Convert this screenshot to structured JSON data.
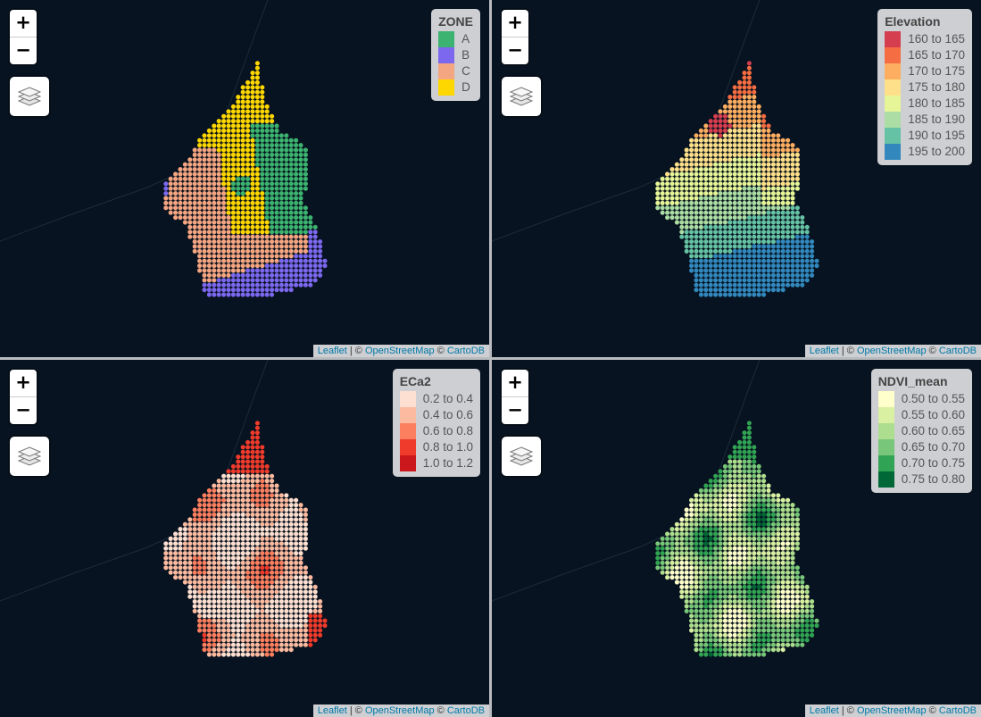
{
  "map_controls": {
    "zoom_in": "+",
    "zoom_out": "−"
  },
  "attribution": {
    "leaflet": "Leaflet",
    "sep": " | © ",
    "osm": "OpenStreetMap",
    "copy2": " © ",
    "carto": "CartoDB"
  },
  "panels": [
    {
      "legend_title": "ZONE",
      "legend": [
        {
          "label": "A",
          "color": "#3cb371"
        },
        {
          "label": "B",
          "color": "#7b68ee"
        },
        {
          "label": "C",
          "color": "#f4a582"
        },
        {
          "label": "D",
          "color": "#ffd700"
        }
      ]
    },
    {
      "legend_title": "Elevation",
      "legend": [
        {
          "label": "160 to 165",
          "color": "#d53e4f"
        },
        {
          "label": "165 to 170",
          "color": "#f46d43"
        },
        {
          "label": "170 to 175",
          "color": "#fdae61"
        },
        {
          "label": "175 to 180",
          "color": "#fee08b"
        },
        {
          "label": "180 to 185",
          "color": "#e6f598"
        },
        {
          "label": "185 to 190",
          "color": "#abdda4"
        },
        {
          "label": "190 to 195",
          "color": "#66c2a5"
        },
        {
          "label": "195 to 200",
          "color": "#3288bd"
        }
      ]
    },
    {
      "legend_title": "ECa2",
      "legend": [
        {
          "label": "0.2 to 0.4",
          "color": "#fee0d2"
        },
        {
          "label": "0.4 to 0.6",
          "color": "#fcbba1"
        },
        {
          "label": "0.6 to 0.8",
          "color": "#fc7f5f"
        },
        {
          "label": "0.8 to 1.0",
          "color": "#ef3b2c"
        },
        {
          "label": "1.0 to 1.2",
          "color": "#cb181d"
        }
      ]
    },
    {
      "legend_title": "NDVI_mean",
      "legend": [
        {
          "label": "0.50 to 0.55",
          "color": "#ffffcc"
        },
        {
          "label": "0.55 to 0.60",
          "color": "#d9f0a3"
        },
        {
          "label": "0.60 to 0.65",
          "color": "#addd8e"
        },
        {
          "label": "0.65 to 0.70",
          "color": "#78c679"
        },
        {
          "label": "0.70 to 0.75",
          "color": "#31a354"
        },
        {
          "label": "0.75 to 0.80",
          "color": "#006837"
        }
      ]
    }
  ]
}
